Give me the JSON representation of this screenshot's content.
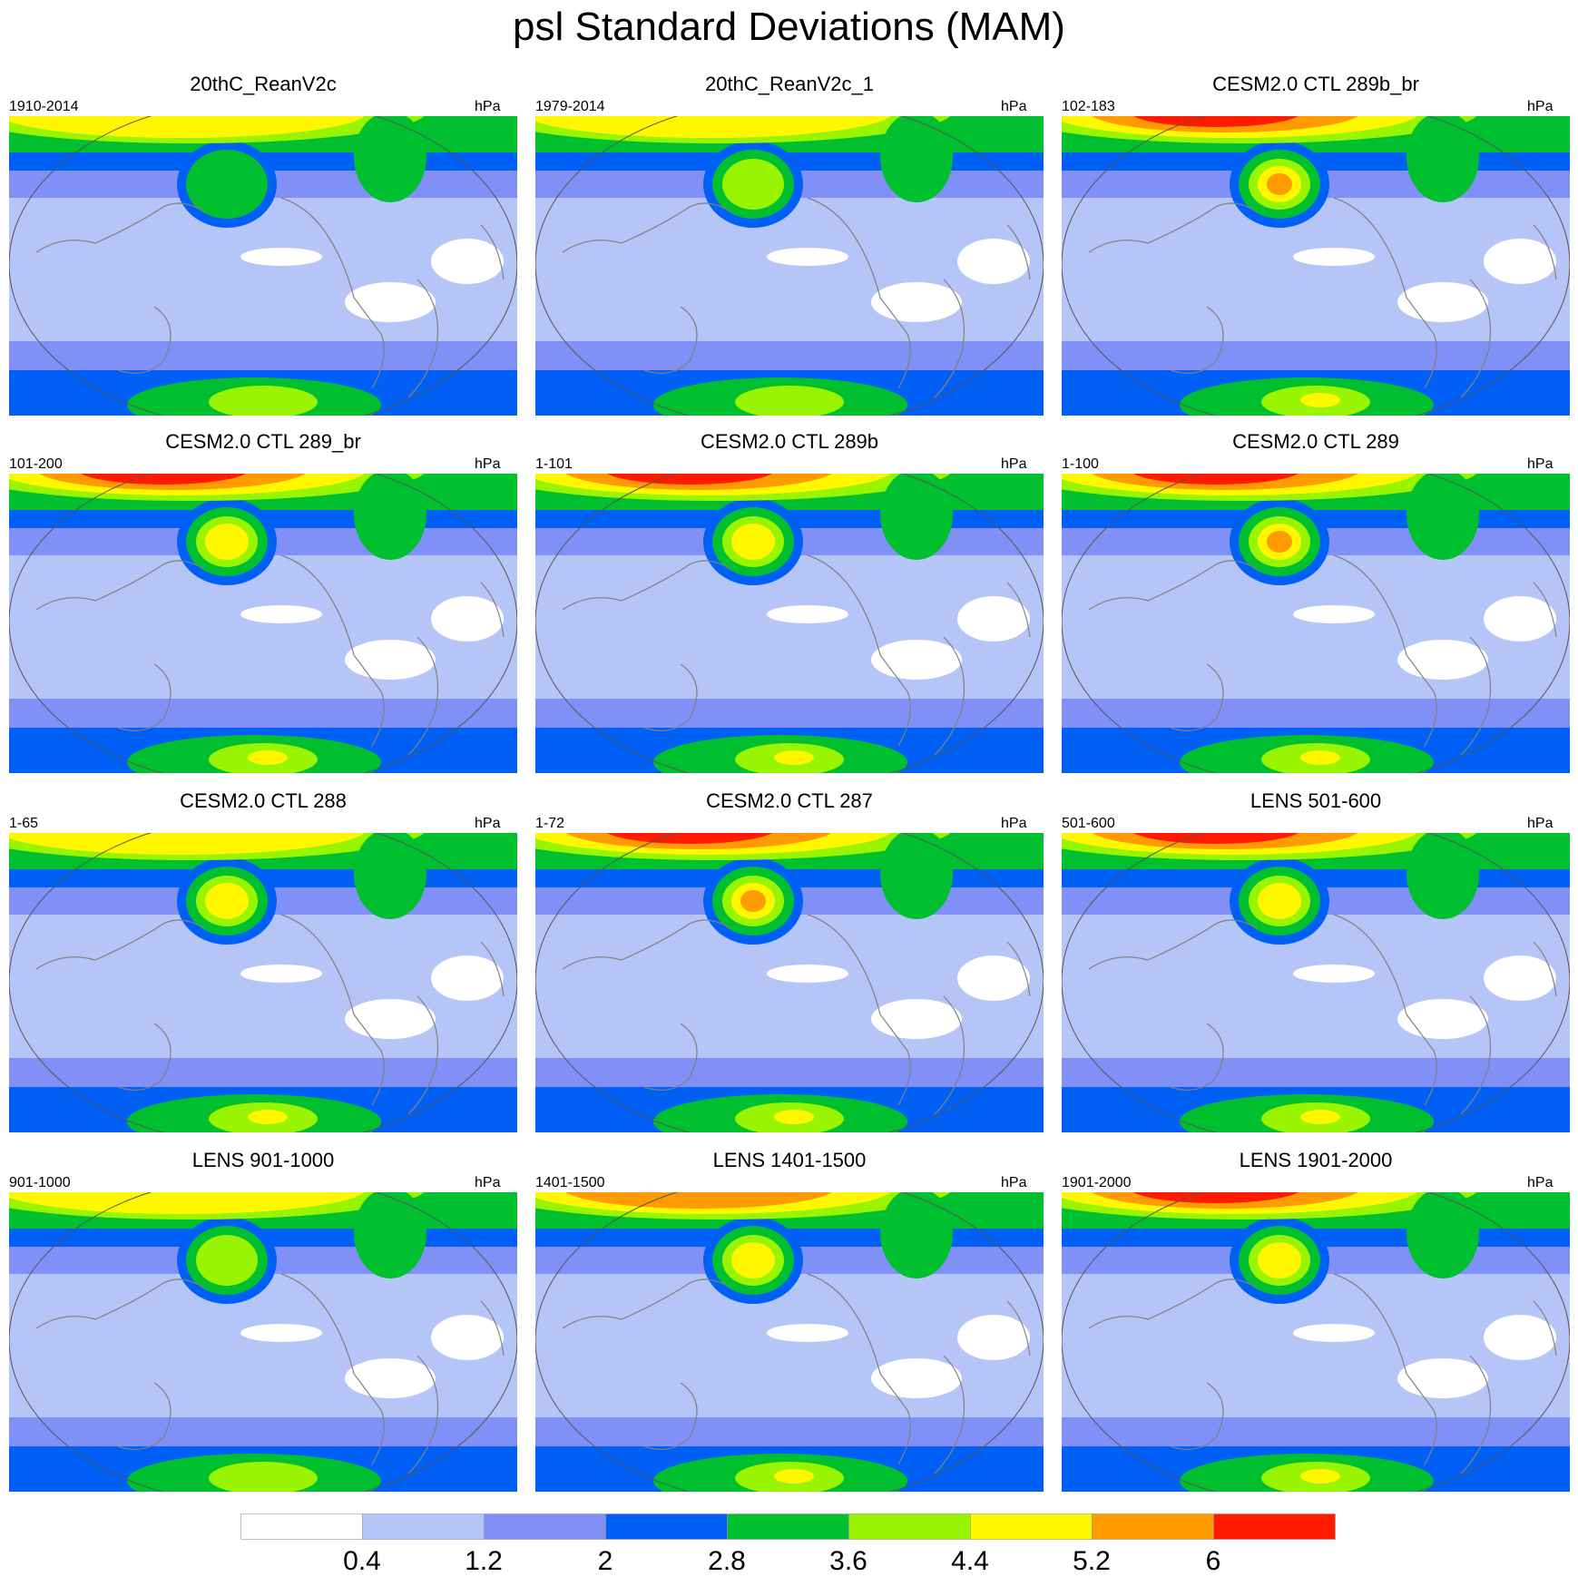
{
  "title": "psl Standard Deviations (MAM)",
  "units": "hPa",
  "colorbar": {
    "levels": [
      "0.4",
      "1.2",
      "2",
      "2.8",
      "3.6",
      "4.4",
      "5.2",
      "6"
    ],
    "colors": [
      "#ffffff",
      "#b5c5f8",
      "#8090f7",
      "#0060f5",
      "#00c030",
      "#98f400",
      "#fff700",
      "#ff9a00",
      "#ff1a00"
    ]
  },
  "panels": [
    {
      "title": "20thC_ReanV2c",
      "period": "1910-2014",
      "units": "hPa",
      "max_level": 6,
      "nh_peak": 4
    },
    {
      "title": "20thC_ReanV2c_1",
      "period": "1979-2014",
      "units": "hPa",
      "max_level": 6,
      "nh_peak": 5
    },
    {
      "title": "CESM2.0 CTL 289b_br",
      "period": "102-183",
      "units": "hPa",
      "max_level": 8,
      "nh_peak": 7
    },
    {
      "title": "CESM2.0 CTL 289_br",
      "period": "101-200",
      "units": "hPa",
      "max_level": 8,
      "nh_peak": 6
    },
    {
      "title": "CESM2.0 CTL 289b",
      "period": "1-101",
      "units": "hPa",
      "max_level": 8,
      "nh_peak": 6
    },
    {
      "title": "CESM2.0 CTL 289",
      "period": "1-100",
      "units": "hPa",
      "max_level": 8,
      "nh_peak": 7
    },
    {
      "title": "CESM2.0 CTL 288",
      "period": "1-65",
      "units": "hPa",
      "max_level": 6,
      "nh_peak": 6
    },
    {
      "title": "CESM2.0 CTL 287",
      "period": "1-72",
      "units": "hPa",
      "max_level": 8,
      "nh_peak": 7
    },
    {
      "title": "LENS 501-600",
      "period": "501-600",
      "units": "hPa",
      "max_level": 8,
      "nh_peak": 6
    },
    {
      "title": "LENS 901-1000",
      "period": "901-1000",
      "units": "hPa",
      "max_level": 6,
      "nh_peak": 5
    },
    {
      "title": "LENS 1401-1500",
      "period": "1401-1500",
      "units": "hPa",
      "max_level": 7,
      "nh_peak": 6
    },
    {
      "title": "LENS 1901-2000",
      "period": "1901-2000",
      "units": "hPa",
      "max_level": 8,
      "nh_peak": 6
    }
  ]
}
